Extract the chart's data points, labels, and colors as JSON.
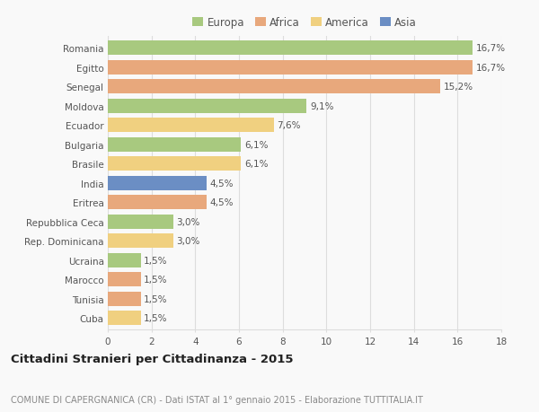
{
  "countries": [
    "Romania",
    "Egitto",
    "Senegal",
    "Moldova",
    "Ecuador",
    "Bulgaria",
    "Brasile",
    "India",
    "Eritrea",
    "Repubblica Ceca",
    "Rep. Dominicana",
    "Ucraina",
    "Marocco",
    "Tunisia",
    "Cuba"
  ],
  "values": [
    16.7,
    16.7,
    15.2,
    9.1,
    7.6,
    6.1,
    6.1,
    4.5,
    4.5,
    3.0,
    3.0,
    1.5,
    1.5,
    1.5,
    1.5
  ],
  "labels": [
    "16,7%",
    "16,7%",
    "15,2%",
    "9,1%",
    "7,6%",
    "6,1%",
    "6,1%",
    "4,5%",
    "4,5%",
    "3,0%",
    "3,0%",
    "1,5%",
    "1,5%",
    "1,5%",
    "1,5%"
  ],
  "continents": [
    "Europa",
    "Africa",
    "Africa",
    "Europa",
    "America",
    "Europa",
    "America",
    "Asia",
    "Africa",
    "Europa",
    "America",
    "Europa",
    "Africa",
    "Africa",
    "America"
  ],
  "continent_colors": {
    "Europa": "#a8c97f",
    "Africa": "#e8a87c",
    "America": "#f0d080",
    "Asia": "#6b8ec4"
  },
  "legend_order": [
    "Europa",
    "Africa",
    "America",
    "Asia"
  ],
  "xlim": [
    0,
    18
  ],
  "xticks": [
    0,
    2,
    4,
    6,
    8,
    10,
    12,
    14,
    16,
    18
  ],
  "title": "Cittadini Stranieri per Cittadinanza - 2015",
  "subtitle": "COMUNE DI CAPERGNANICA (CR) - Dati ISTAT al 1° gennaio 2015 - Elaborazione TUTTITALIA.IT",
  "background_color": "#f9f9f9",
  "bar_height": 0.75,
  "grid_color": "#dddddd",
  "text_color": "#555555",
  "label_color": "#555555",
  "title_color": "#222222",
  "subtitle_color": "#888888"
}
